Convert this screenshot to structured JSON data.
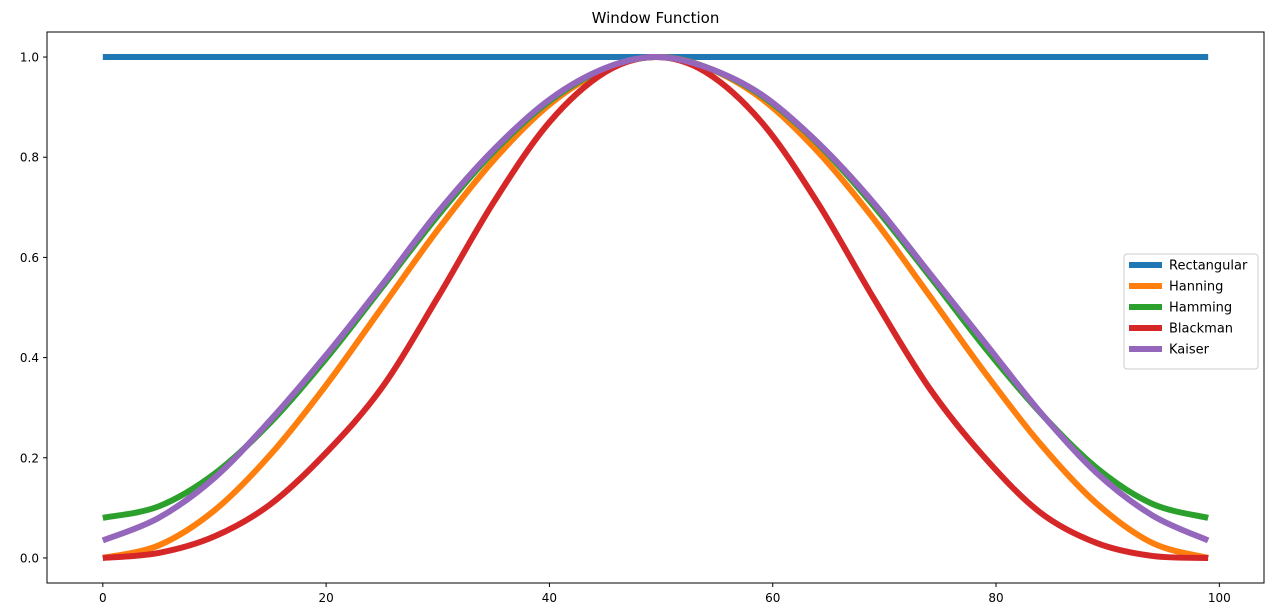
{
  "chart_data": {
    "type": "line",
    "title": "Window Function",
    "xlabel": "",
    "ylabel": "",
    "xlim": [
      -5,
      104
    ],
    "ylim": [
      -0.05,
      1.05
    ],
    "xticks": [
      0,
      20,
      40,
      60,
      80,
      100
    ],
    "yticks": [
      0.0,
      0.2,
      0.4,
      0.6,
      0.8,
      1.0
    ],
    "xtick_labels": [
      "0",
      "20",
      "40",
      "60",
      "80",
      "100"
    ],
    "ytick_labels": [
      "0.0",
      "0.2",
      "0.4",
      "0.6",
      "0.8",
      "1.0"
    ],
    "grid": false,
    "legend_position": "center-right",
    "x": [
      0,
      5,
      10,
      15,
      20,
      25,
      30,
      35,
      40,
      45,
      49.5,
      54,
      59,
      64,
      69,
      74,
      79,
      84,
      89,
      94,
      99
    ],
    "series": [
      {
        "name": "Rectangular",
        "color": "#1f77b4",
        "values": [
          1,
          1,
          1,
          1,
          1,
          1,
          1,
          1,
          1,
          1,
          1,
          1,
          1,
          1,
          1,
          1,
          1,
          1,
          1,
          1,
          1
        ]
      },
      {
        "name": "Hanning",
        "color": "#ff7f0e",
        "values": [
          0.0,
          0.025,
          0.095,
          0.206,
          0.345,
          0.5,
          0.655,
          0.794,
          0.905,
          0.975,
          1.0,
          0.98,
          0.917,
          0.812,
          0.678,
          0.525,
          0.37,
          0.227,
          0.109,
          0.03,
          0.0
        ]
      },
      {
        "name": "Hamming",
        "color": "#2ca02c",
        "values": [
          0.08,
          0.103,
          0.168,
          0.27,
          0.398,
          0.54,
          0.683,
          0.811,
          0.912,
          0.977,
          1.0,
          0.98,
          0.923,
          0.828,
          0.704,
          0.564,
          0.42,
          0.289,
          0.18,
          0.108,
          0.08
        ]
      },
      {
        "name": "Blackman",
        "color": "#d62728",
        "values": [
          0.0,
          0.01,
          0.043,
          0.107,
          0.21,
          0.34,
          0.52,
          0.71,
          0.87,
          0.97,
          1.0,
          0.97,
          0.87,
          0.71,
          0.52,
          0.34,
          0.2,
          0.09,
          0.03,
          0.004,
          0.0
        ]
      },
      {
        "name": "Kaiser",
        "color": "#9467bd",
        "values": [
          0.035,
          0.08,
          0.16,
          0.275,
          0.405,
          0.545,
          0.69,
          0.815,
          0.915,
          0.978,
          1.0,
          0.98,
          0.925,
          0.83,
          0.71,
          0.57,
          0.43,
          0.29,
          0.17,
          0.085,
          0.035
        ]
      }
    ]
  }
}
